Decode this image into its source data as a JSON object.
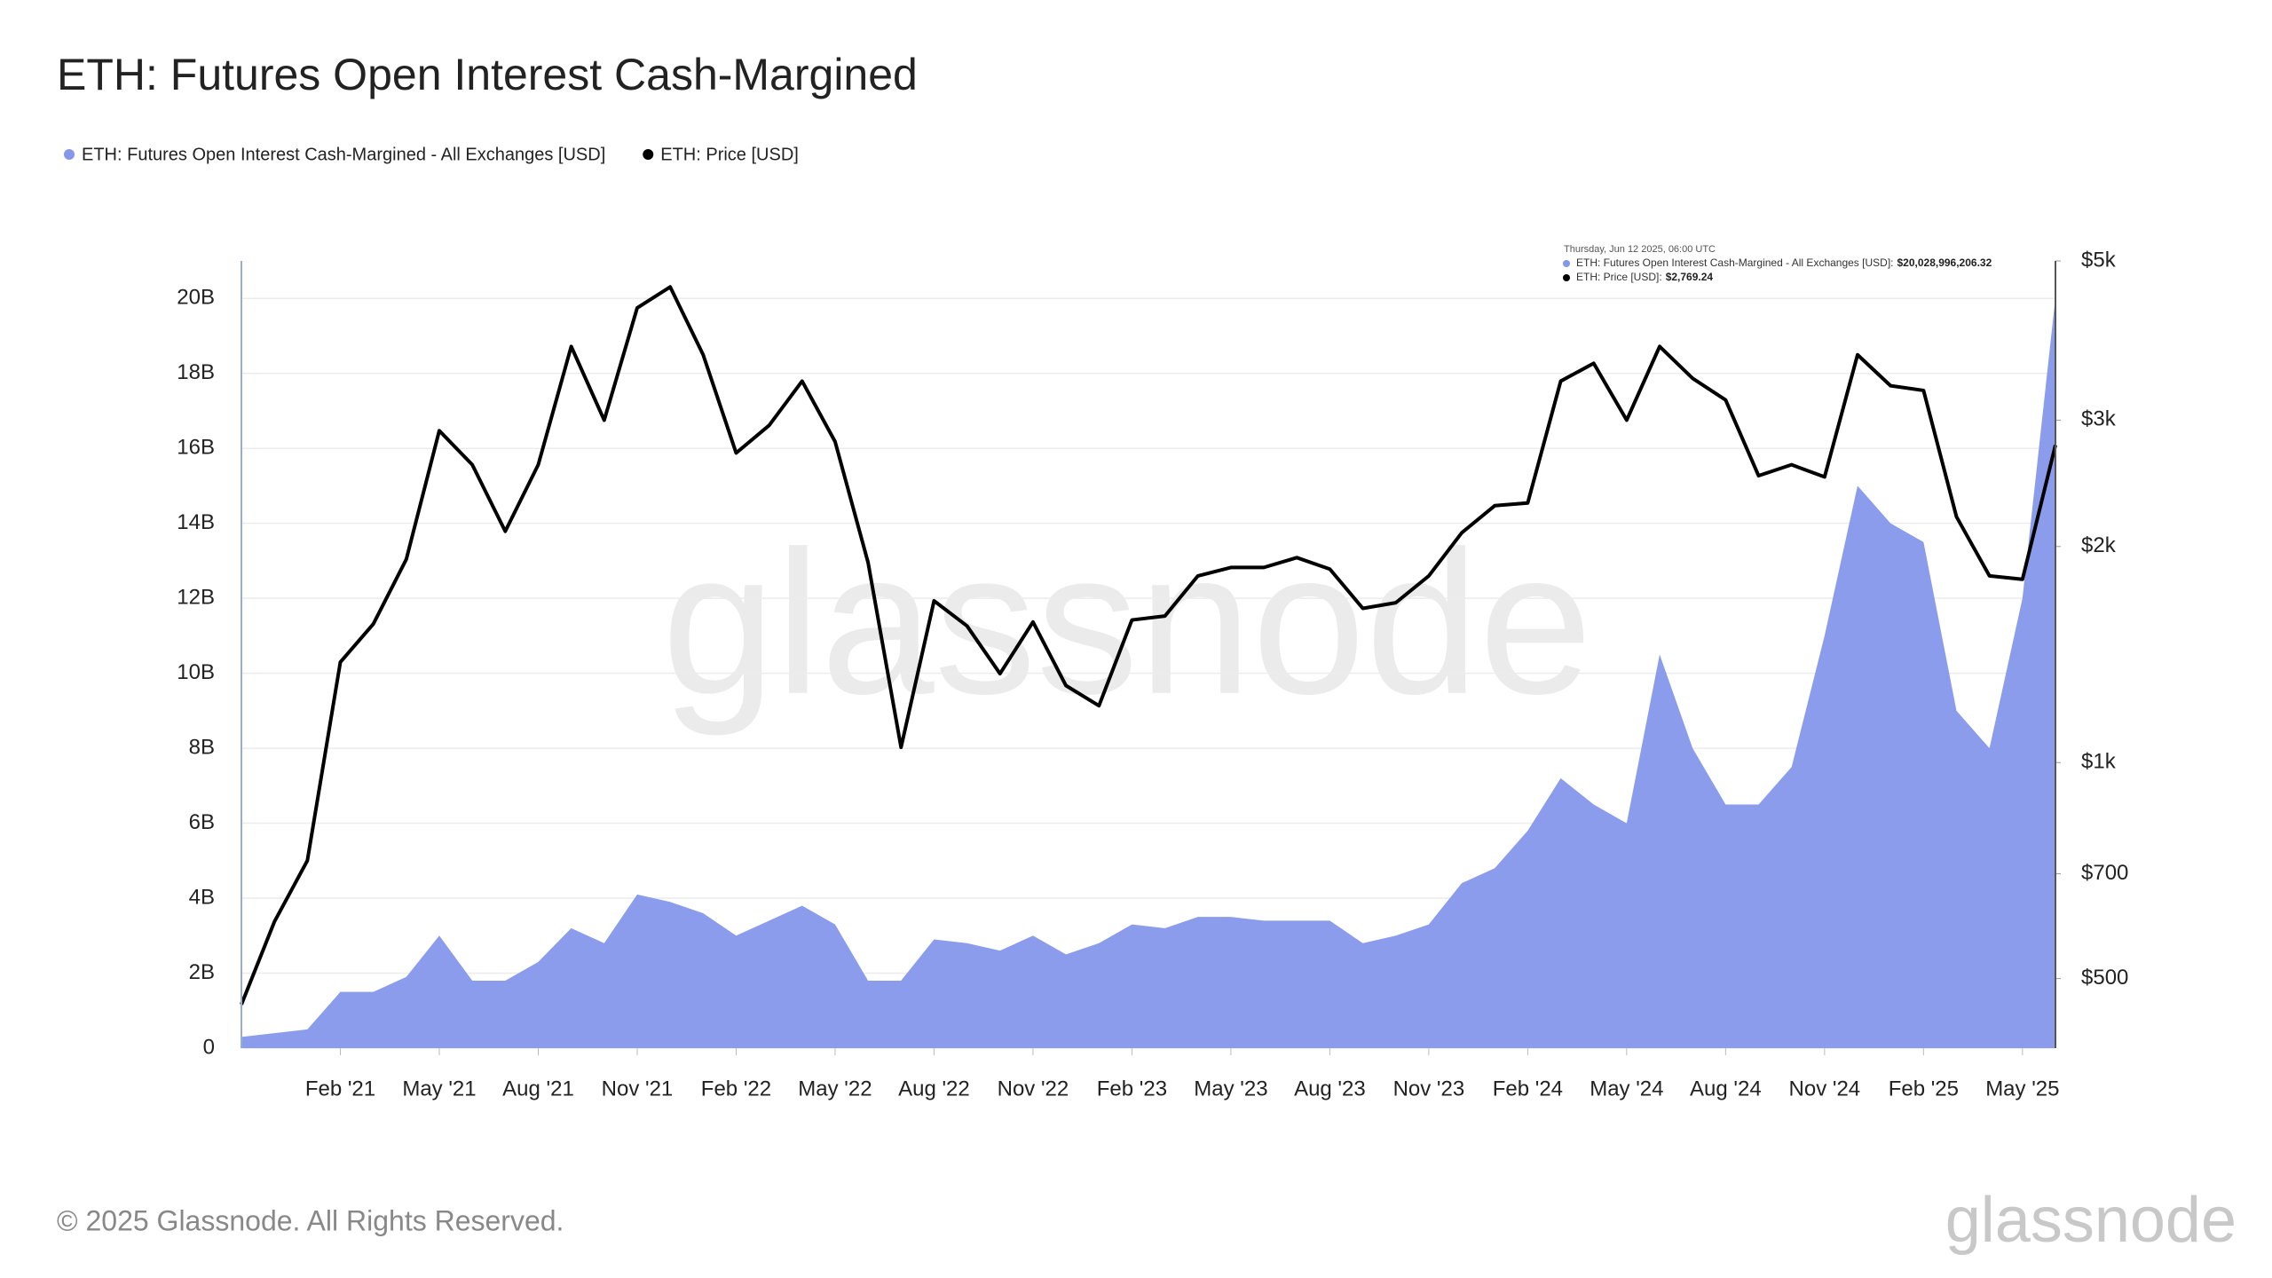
{
  "chart_data": {
    "type": "area-line",
    "title": "ETH: Futures Open Interest Cash-Margined",
    "x": [
      "2020-11",
      "2020-12",
      "2021-01",
      "2021-02",
      "2021-03",
      "2021-04",
      "2021-05",
      "2021-06",
      "2021-07",
      "2021-08",
      "2021-09",
      "2021-10",
      "2021-11",
      "2021-12",
      "2022-01",
      "2022-02",
      "2022-03",
      "2022-04",
      "2022-05",
      "2022-06",
      "2022-07",
      "2022-08",
      "2022-09",
      "2022-10",
      "2022-11",
      "2022-12",
      "2023-01",
      "2023-02",
      "2023-03",
      "2023-04",
      "2023-05",
      "2023-06",
      "2023-07",
      "2023-08",
      "2023-09",
      "2023-10",
      "2023-11",
      "2023-12",
      "2024-01",
      "2024-02",
      "2024-03",
      "2024-04",
      "2024-05",
      "2024-06",
      "2024-07",
      "2024-08",
      "2024-09",
      "2024-10",
      "2024-11",
      "2024-12",
      "2025-01",
      "2025-02",
      "2025-03",
      "2025-04",
      "2025-05",
      "2025-06"
    ],
    "series": [
      {
        "name": "ETH: Futures Open Interest Cash-Margined - All Exchanges [USD]",
        "color": "#8497ea",
        "kind": "area",
        "axis": "y",
        "values": [
          300000000,
          400000000,
          500000000,
          1500000000,
          1500000000,
          1900000000,
          3000000000,
          1800000000,
          1800000000,
          2300000000,
          3200000000,
          2800000000,
          4100000000,
          3900000000,
          3600000000,
          3000000000,
          3400000000,
          3800000000,
          3300000000,
          1800000000,
          1800000000,
          2900000000,
          2800000000,
          2600000000,
          3000000000,
          2500000000,
          2800000000,
          3300000000,
          3200000000,
          3500000000,
          3500000000,
          3400000000,
          3400000000,
          3400000000,
          2800000000,
          3000000000,
          3300000000,
          4400000000,
          4800000000,
          5800000000,
          7200000000,
          6500000000,
          6000000000,
          10500000000,
          8000000000,
          6500000000,
          6500000000,
          7500000000,
          11000000000,
          15000000000,
          14000000000,
          13500000000,
          9000000000,
          8000000000,
          12000000000,
          20028996206.32
        ]
      },
      {
        "name": "ETH: Price [USD]",
        "color": "#000000",
        "kind": "line",
        "axis": "y2",
        "values": [
          460,
          600,
          730,
          1380,
          1560,
          1920,
          2900,
          2600,
          2100,
          2600,
          3800,
          3000,
          4300,
          4600,
          3700,
          2700,
          2950,
          3400,
          2800,
          1900,
          1050,
          1680,
          1550,
          1330,
          1570,
          1280,
          1200,
          1580,
          1600,
          1820,
          1870,
          1870,
          1930,
          1860,
          1640,
          1670,
          1820,
          2090,
          2280,
          2300,
          3400,
          3600,
          3000,
          3800,
          3430,
          3200,
          2510,
          2600,
          2500,
          3700,
          3350,
          3300,
          2200,
          1820,
          1800,
          2769.24
        ]
      }
    ],
    "xlim": [
      "2020-11",
      "2025-06"
    ],
    "xticks": [
      {
        "value": "2021-02",
        "label": "Feb '21"
      },
      {
        "value": "2021-05",
        "label": "May '21"
      },
      {
        "value": "2021-08",
        "label": "Aug '21"
      },
      {
        "value": "2021-11",
        "label": "Nov '21"
      },
      {
        "value": "2022-02",
        "label": "Feb '22"
      },
      {
        "value": "2022-05",
        "label": "May '22"
      },
      {
        "value": "2022-08",
        "label": "Aug '22"
      },
      {
        "value": "2022-11",
        "label": "Nov '22"
      },
      {
        "value": "2023-02",
        "label": "Feb '23"
      },
      {
        "value": "2023-05",
        "label": "May '23"
      },
      {
        "value": "2023-08",
        "label": "Aug '23"
      },
      {
        "value": "2023-11",
        "label": "Nov '23"
      },
      {
        "value": "2024-02",
        "label": "Feb '24"
      },
      {
        "value": "2024-05",
        "label": "May '24"
      },
      {
        "value": "2024-08",
        "label": "Aug '24"
      },
      {
        "value": "2024-11",
        "label": "Nov '24"
      },
      {
        "value": "2025-02",
        "label": "Feb '25"
      },
      {
        "value": "2025-05",
        "label": "May '25"
      }
    ],
    "ylim": [
      0,
      21000000000
    ],
    "yticks": [
      0,
      {
        "value": 2000000000,
        "label": "2B"
      },
      {
        "value": 4000000000,
        "label": "4B"
      },
      {
        "value": 6000000000,
        "label": "6B"
      },
      {
        "value": 8000000000,
        "label": "8B"
      },
      {
        "value": 10000000000,
        "label": "10B"
      },
      {
        "value": 12000000000,
        "label": "12B"
      },
      {
        "value": 14000000000,
        "label": "14B"
      },
      {
        "value": 16000000000,
        "label": "16B"
      },
      {
        "value": 18000000000,
        "label": "18B"
      },
      {
        "value": 20000000000,
        "label": "20B"
      }
    ],
    "y2lim": [
      400,
      5000
    ],
    "y2log": true,
    "y2ticks": [
      {
        "value": 500,
        "label": "$500"
      },
      {
        "value": 700,
        "label": "$700"
      },
      {
        "value": 1000,
        "label": "$1k"
      },
      {
        "value": 2000,
        "label": "$2k"
      },
      {
        "value": 3000,
        "label": "$3k"
      },
      {
        "value": 5000,
        "label": "$5k"
      }
    ],
    "grid": true,
    "tooltip": {
      "date": "Thursday, Jun 12 2025, 06:00 UTC",
      "items": [
        {
          "label": "ETH: Futures Open Interest Cash-Margined - All Exchanges [USD]:",
          "value": "$20,028,996,206.32"
        },
        {
          "label": "ETH: Price [USD]:",
          "value": "$2,769.24"
        }
      ]
    },
    "watermark": "glassnode",
    "footer": "© 2025 Glassnode. All Rights Reserved.",
    "logo": "glassnode"
  }
}
